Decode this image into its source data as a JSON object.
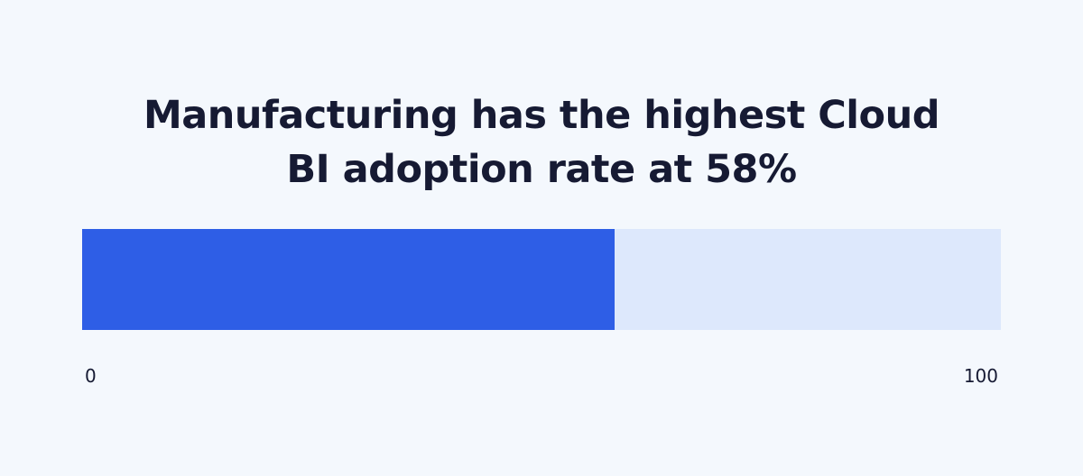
{
  "chart_data": {
    "type": "bar",
    "title_lines": [
      "Manufacturing has the highest Cloud",
      "BI adoption rate at 58%"
    ],
    "values": [
      58
    ],
    "xlim": [
      0,
      100
    ],
    "tick_labels": [
      "0",
      "100"
    ],
    "colors": {
      "fill": "#2e5ee6",
      "track": "#dde8fc",
      "background": "#f4f8fd",
      "text": "#161a33"
    }
  }
}
